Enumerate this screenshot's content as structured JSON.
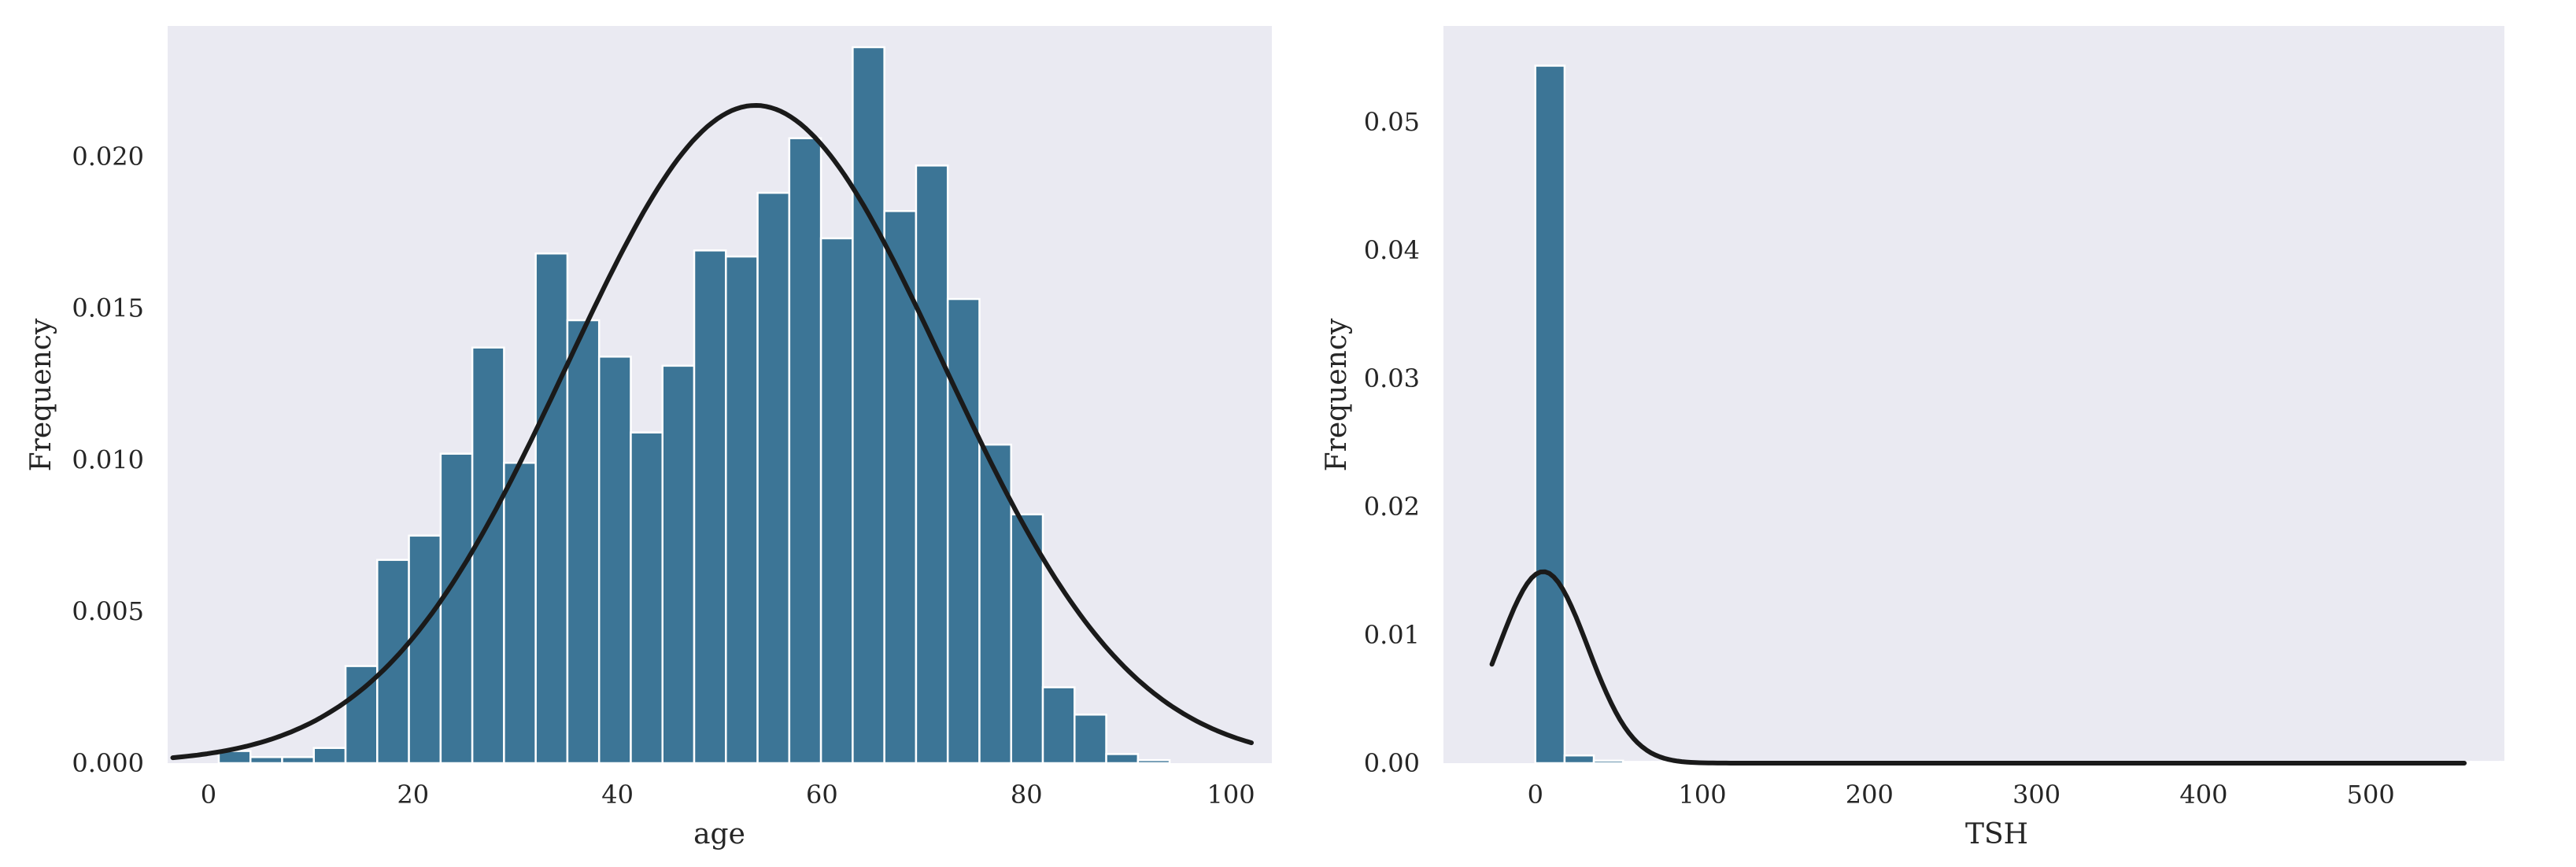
{
  "colors": {
    "bar": "#3c7596",
    "bar_edge": "#ffffff",
    "curve": "#1a1a1a",
    "plot_background": "#eaeaf2",
    "text": "#262626"
  },
  "chart_data": [
    {
      "type": "bar",
      "subtype": "histogram",
      "overlay": "normal-density-curve",
      "xlabel": "age",
      "ylabel": "Frequency",
      "xlim": [
        -4,
        104
      ],
      "ylim": [
        0,
        0.0243
      ],
      "xticks": [
        0,
        20,
        40,
        60,
        80,
        100
      ],
      "xtick_labels": [
        "0",
        "20",
        "40",
        "60",
        "80",
        "100"
      ],
      "yticks": [
        0,
        0.005,
        0.01,
        0.015,
        0.02
      ],
      "ytick_labels": [
        "0.000",
        "0.005",
        "0.010",
        "0.015",
        "0.020"
      ],
      "grid": false,
      "bins": {
        "start": 1,
        "width": 3.1,
        "values": [
          0.0004,
          0.0002,
          0.0002,
          0.0005,
          0.0032,
          0.0067,
          0.0075,
          0.0102,
          0.0137,
          0.0099,
          0.0168,
          0.0146,
          0.0134,
          0.0109,
          0.0131,
          0.0169,
          0.0167,
          0.0188,
          0.0206,
          0.0173,
          0.0236,
          0.0182,
          0.0197,
          0.0153,
          0.0105,
          0.0082,
          0.0025,
          0.0016,
          0.0003,
          0.0001
        ]
      },
      "curve": {
        "x_start": -3.5,
        "x_end": 102,
        "mean": 53.5,
        "std": 18.4
      }
    },
    {
      "type": "bar",
      "subtype": "histogram",
      "overlay": "normal-density-curve",
      "xlabel": "TSH",
      "ylabel": "Frequency",
      "xlim": [
        -55,
        580
      ],
      "ylim": [
        0,
        0.0575
      ],
      "xticks": [
        0,
        100,
        200,
        300,
        400,
        500
      ],
      "xtick_labels": [
        "0",
        "100",
        "200",
        "300",
        "400",
        "500"
      ],
      "yticks": [
        0,
        0.01,
        0.02,
        0.03,
        0.04,
        0.05
      ],
      "ytick_labels": [
        "0.00",
        "0.01",
        "0.02",
        "0.03",
        "0.04",
        "0.05"
      ],
      "grid": false,
      "bins": {
        "start": 0,
        "width": 17.5,
        "values": [
          0.0544,
          0.0006,
          0.0002,
          0.0001,
          0.0001,
          0.0001,
          0.0001,
          0.0001,
          0.0001,
          0.0001,
          0.0001,
          0.0001,
          0.0001,
          0.0001,
          0.0001,
          0.0001,
          0.0001,
          0.0001,
          0.0001,
          0.0001,
          0.0001,
          0.0001,
          0.0001,
          0.0001,
          0.0001,
          0.0001,
          0.0001,
          0.0001,
          0.0001,
          0.0001,
          0.0001,
          0.0001,
          0.0001,
          0.0001
        ]
      },
      "curve": {
        "x_start": -26,
        "x_end": 556,
        "mean": 4.7,
        "std": 26.7
      }
    }
  ]
}
